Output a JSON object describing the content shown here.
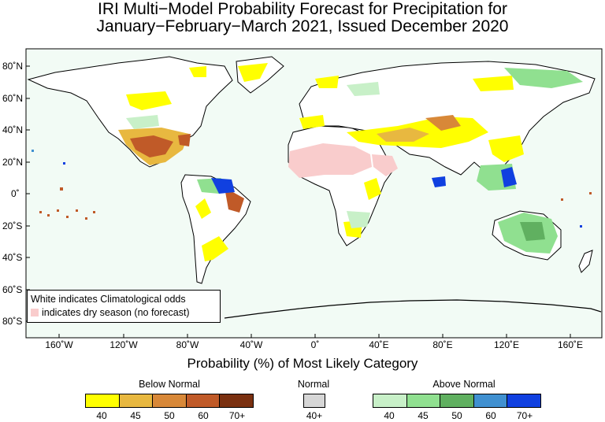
{
  "title": {
    "line1": "IRI Multi−Model Probability Forecast for Precipitation for",
    "line2": "January−February−March 2021, Issued December 2020"
  },
  "axes": {
    "lat_labels": [
      "80˚N",
      "60˚N",
      "40˚N",
      "20˚N",
      "0˚",
      "20˚S",
      "40˚S",
      "60˚S",
      "80˚S"
    ],
    "lon_labels": [
      "160˚W",
      "120˚W",
      "80˚W",
      "40˚W",
      "0˚",
      "40˚E",
      "80˚E",
      "120˚E",
      "160˚E"
    ]
  },
  "notes": {
    "line1": "White indicates Climatological odds",
    "line2": "indicates dry season (no forecast)"
  },
  "colorbar": {
    "title": "Probability (%) of Most Likely Category",
    "below": {
      "name": "Below Normal",
      "ticks": [
        "40",
        "45",
        "50",
        "60",
        "70+"
      ],
      "colors": [
        "#ffff00",
        "#e8b840",
        "#d88838",
        "#c05a28",
        "#7a3010"
      ]
    },
    "normal": {
      "name": "Normal",
      "ticks": [
        "40+"
      ],
      "colors": [
        "#d6d6d6"
      ]
    },
    "above": {
      "name": "Above Normal",
      "ticks": [
        "40",
        "45",
        "50",
        "60",
        "70+"
      ],
      "colors": [
        "#c8f0c8",
        "#90e090",
        "#60b060",
        "#4090d0",
        "#1040e0"
      ]
    }
  },
  "colors": {
    "ocean": "#f2fbf5",
    "dry": "#f9cccc",
    "coast": "#000000"
  }
}
